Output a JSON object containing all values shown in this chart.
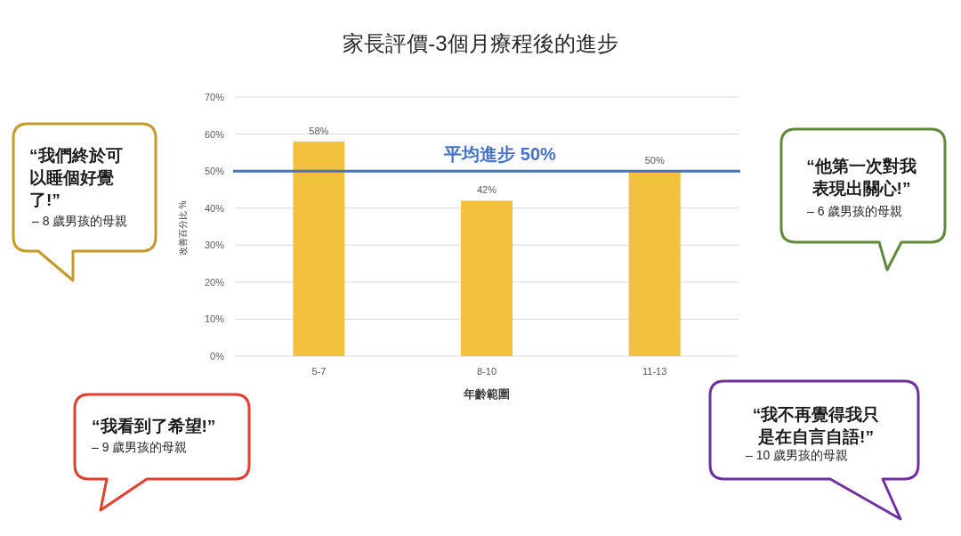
{
  "chart_data": {
    "type": "bar",
    "title": "家長評價-3個月療程後的進步",
    "xlabel": "年齡範圍",
    "ylabel": "改善百分比 %",
    "categories": [
      "5-7",
      "8-10",
      "11-13"
    ],
    "values": [
      58,
      42,
      50
    ],
    "color": "#f2c13e",
    "value_labels": [
      "58%",
      "42%",
      "50%"
    ],
    "ylim": [
      0,
      70
    ],
    "yticks": [
      {
        "value": 0,
        "label": "0%"
      },
      {
        "value": 10,
        "label": "10%"
      },
      {
        "value": 20,
        "label": "20%"
      },
      {
        "value": 30,
        "label": "30%"
      },
      {
        "value": 40,
        "label": "40%"
      },
      {
        "value": 50,
        "label": "50%"
      },
      {
        "value": 60,
        "label": "60%"
      },
      {
        "value": 70,
        "label": "70%"
      }
    ],
    "grid": "y",
    "ref_lines": [
      {
        "axis": "y",
        "value": 50,
        "label": "平均進步 50%",
        "color": "#4472c4"
      }
    ],
    "annotations": [
      "“我們終於可以睡個好覺了!”",
      "– 8 歲男孩的母親",
      "“他第一次對我表現出關心!”",
      "– 6 歲男孩的母親",
      "“我看到了希望!”",
      "– 9 歲男孩的母親",
      "“我不再覺得我只是在自言自語!”",
      "– 10 歲男孩的母親"
    ]
  }
}
